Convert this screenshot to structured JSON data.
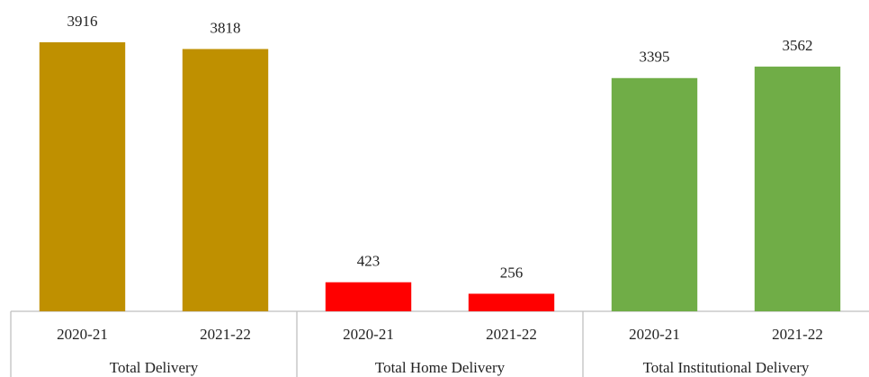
{
  "chart_data": {
    "type": "bar",
    "groups": [
      {
        "name": "Total Delivery",
        "color": "#bf9000",
        "categories": [
          "2020-21",
          "2021-22"
        ],
        "values": [
          3916,
          3818
        ]
      },
      {
        "name": "Total Home Delivery",
        "color": "#ff0000",
        "categories": [
          "2020-21",
          "2021-22"
        ],
        "values": [
          423,
          256
        ]
      },
      {
        "name": "Total Institutional Delivery",
        "color": "#70ad47",
        "categories": [
          "2020-21",
          "2021-22"
        ],
        "values": [
          3395,
          3562
        ]
      }
    ]
  }
}
